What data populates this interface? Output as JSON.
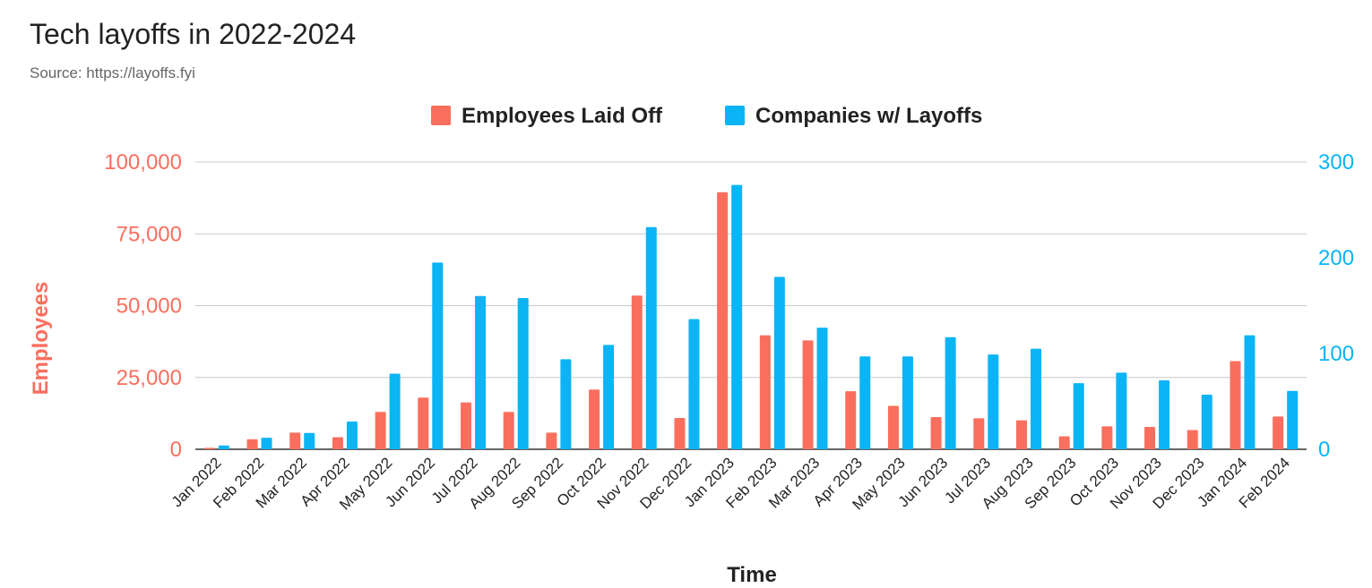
{
  "colors": {
    "employees": "#fa6e5e",
    "companies": "#0ab4f5",
    "grid": "#c8c8c8",
    "axis": "#333333"
  },
  "chart_data": {
    "type": "bar",
    "title": "Tech layoffs in 2022-2024",
    "subtitle": "Source: https://layoffs.fyi",
    "xlabel": "Time",
    "ylabel": "Employees",
    "ylabel_right": "",
    "legend_position": "top-center",
    "grid": true,
    "categories": [
      "Jan 2022",
      "Feb 2022",
      "Mar 2022",
      "Apr 2022",
      "May 2022",
      "Jun 2022",
      "Jul 2022",
      "Aug 2022",
      "Sep 2022",
      "Oct 2022",
      "Nov 2022",
      "Dec 2022",
      "Jan 2023",
      "Feb 2023",
      "Mar 2023",
      "Apr 2023",
      "May 2023",
      "Jun 2023",
      "Jul 2023",
      "Aug 2023",
      "Sep 2023",
      "Oct 2023",
      "Nov 2023",
      "Dec 2023",
      "Jan 2024",
      "Feb 2024"
    ],
    "series": [
      {
        "name": "Employees Laid Off",
        "axis": "left",
        "values": [
          500,
          3500,
          5800,
          4200,
          13000,
          18000,
          16300,
          13000,
          5800,
          20800,
          53500,
          10900,
          89500,
          39700,
          37900,
          20200,
          15100,
          11200,
          10800,
          10100,
          4500,
          8000,
          7800,
          6700,
          30700,
          11400
        ]
      },
      {
        "name": "Companies w/ Layoffs",
        "axis": "right",
        "values": [
          4,
          12,
          17,
          29,
          79,
          195,
          160,
          158,
          94,
          109,
          232,
          136,
          276,
          180,
          127,
          97,
          97,
          117,
          99,
          105,
          69,
          80,
          72,
          57,
          119,
          61
        ]
      }
    ],
    "ylim": [
      0,
      100000
    ],
    "ylim_right": [
      0,
      300
    ],
    "yticks": [
      "0",
      "25,000",
      "50,000",
      "75,000",
      "100,000"
    ],
    "yticks_right": [
      "0",
      "100",
      "200",
      "300"
    ]
  }
}
